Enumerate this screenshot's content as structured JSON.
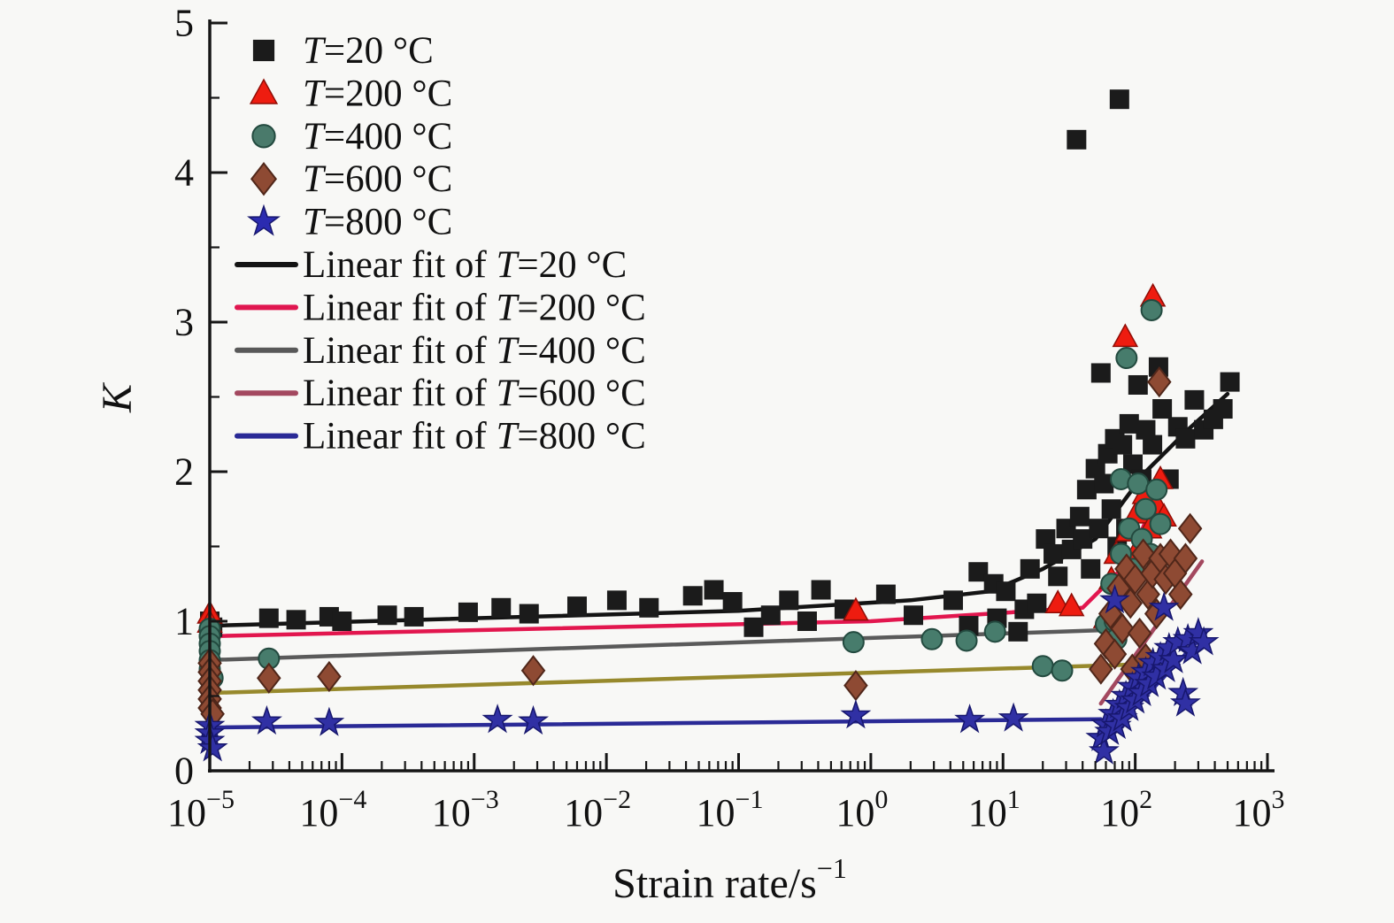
{
  "figure": {
    "background": "#f8f8f6",
    "axis_color": "#161616"
  },
  "chart_data": {
    "type": "scatter",
    "title": "",
    "xlabel": {
      "main": "Strain rate/s",
      "sup": "−1"
    },
    "ylabel": "K",
    "x_scale": "log",
    "x_tick_exponents": [
      -5,
      -4,
      -3,
      -2,
      -1,
      0,
      1,
      2,
      3
    ],
    "xlim_exponents": [
      -5,
      3
    ],
    "ylim": [
      0,
      5
    ],
    "y_ticks": [
      "0",
      "1",
      "2",
      "3",
      "4",
      "5"
    ],
    "y_minor_step": 0.5,
    "grid": false,
    "legend_position": "upper-left",
    "series": [
      {
        "name": "T=20 °C",
        "marker": "square",
        "color": "#1b1b1b",
        "edge": "#000000",
        "points": [
          [
            1e-05,
            1.0
          ],
          [
            1.05e-05,
            0.96
          ],
          [
            2.8e-05,
            1.02
          ],
          [
            4.5e-05,
            1.01
          ],
          [
            8e-05,
            1.03
          ],
          [
            0.0001,
            1.0
          ],
          [
            0.00022,
            1.04
          ],
          [
            0.00035,
            1.03
          ],
          [
            0.0009,
            1.06
          ],
          [
            0.0016,
            1.09
          ],
          [
            0.0026,
            1.05
          ],
          [
            0.006,
            1.1
          ],
          [
            0.012,
            1.14
          ],
          [
            0.021,
            1.09
          ],
          [
            0.045,
            1.17
          ],
          [
            0.065,
            1.21
          ],
          [
            0.09,
            1.13
          ],
          [
            0.13,
            0.96
          ],
          [
            0.175,
            1.04
          ],
          [
            0.24,
            1.14
          ],
          [
            0.33,
            1.0
          ],
          [
            0.42,
            1.21
          ],
          [
            0.63,
            1.08
          ],
          [
            1.3,
            1.18
          ],
          [
            2.1,
            1.04
          ],
          [
            4.2,
            1.14
          ],
          [
            5.5,
            0.97
          ],
          [
            6.5,
            1.33
          ],
          [
            8.5,
            1.25
          ],
          [
            9,
            1.02
          ],
          [
            10.5,
            1.2
          ],
          [
            13,
            0.93
          ],
          [
            14.5,
            1.08
          ],
          [
            16,
            1.35
          ],
          [
            18,
            1.12
          ],
          [
            21,
            1.55
          ],
          [
            24,
            1.45
          ],
          [
            26,
            1.3
          ],
          [
            30,
            1.62
          ],
          [
            33,
            1.48
          ],
          [
            36,
            4.22
          ],
          [
            38,
            1.7
          ],
          [
            40,
            1.55
          ],
          [
            43,
            1.88
          ],
          [
            46,
            1.35
          ],
          [
            50,
            2.02
          ],
          [
            53,
            1.62
          ],
          [
            55,
            2.66
          ],
          [
            58,
            1.92
          ],
          [
            62,
            2.12
          ],
          [
            66,
            1.75
          ],
          [
            70,
            2.22
          ],
          [
            73,
            1.5
          ],
          [
            76,
            4.49
          ],
          [
            80,
            2.18
          ],
          [
            85,
            1.62
          ],
          [
            90,
            2.32
          ],
          [
            96,
            2.05
          ],
          [
            105,
            2.58
          ],
          [
            112,
            1.95
          ],
          [
            120,
            2.28
          ],
          [
            135,
            2.18
          ],
          [
            150,
            2.7
          ],
          [
            160,
            2.42
          ],
          [
            180,
            1.95
          ],
          [
            210,
            2.3
          ],
          [
            240,
            2.22
          ],
          [
            280,
            2.48
          ],
          [
            330,
            2.28
          ],
          [
            390,
            2.35
          ],
          [
            460,
            2.42
          ],
          [
            520,
            2.6
          ]
        ]
      },
      {
        "name": "T=200 °C",
        "marker": "triangle",
        "color": "#ee1c10",
        "edge": "#8f0d06",
        "points": [
          [
            1e-05,
            1.05
          ],
          [
            1e-05,
            0.99
          ],
          [
            0.77,
            1.07
          ],
          [
            26,
            1.12
          ],
          [
            33,
            1.1
          ],
          [
            60,
            1.02
          ],
          [
            66,
            1.28
          ],
          [
            72,
            1.45
          ],
          [
            78,
            1.18
          ],
          [
            84,
            2.9
          ],
          [
            88,
            1.6
          ],
          [
            95,
            1.38
          ],
          [
            102,
            1.72
          ],
          [
            110,
            1.52
          ],
          [
            118,
            1.85
          ],
          [
            128,
            1.62
          ],
          [
            136,
            3.17
          ],
          [
            145,
            1.78
          ],
          [
            155,
            1.95
          ],
          [
            165,
            1.7
          ]
        ]
      },
      {
        "name": "T=400 °C",
        "marker": "circle",
        "color": "#477c6c",
        "edge": "#234a3f",
        "points": [
          [
            1e-05,
            0.95
          ],
          [
            1e-05,
            0.9
          ],
          [
            1e-05,
            0.85
          ],
          [
            1e-05,
            0.8
          ],
          [
            1e-05,
            0.74
          ],
          [
            1e-05,
            0.68
          ],
          [
            1.05e-05,
            0.62
          ],
          [
            2.8e-05,
            0.75
          ],
          [
            0.74,
            0.86
          ],
          [
            2.9,
            0.88
          ],
          [
            5.3,
            0.87
          ],
          [
            8.7,
            0.93
          ],
          [
            20,
            0.7
          ],
          [
            28,
            0.67
          ],
          [
            60,
            0.98
          ],
          [
            66,
            1.25
          ],
          [
            70,
            1.0
          ],
          [
            72,
            0.88
          ],
          [
            78,
            1.95
          ],
          [
            78,
            1.45
          ],
          [
            86,
            2.76
          ],
          [
            90,
            1.62
          ],
          [
            97,
            1.35
          ],
          [
            105,
            1.92
          ],
          [
            112,
            1.55
          ],
          [
            120,
            1.75
          ],
          [
            133,
            3.08
          ],
          [
            130,
            1.45
          ],
          [
            145,
            1.88
          ],
          [
            155,
            1.65
          ]
        ]
      },
      {
        "name": "T=600 °C",
        "marker": "diamond",
        "color": "#8e4a33",
        "edge": "#50271a",
        "points": [
          [
            1e-05,
            0.72
          ],
          [
            1e-05,
            0.66
          ],
          [
            1e-05,
            0.6
          ],
          [
            1e-05,
            0.54
          ],
          [
            1e-05,
            0.48
          ],
          [
            1e-05,
            0.42
          ],
          [
            1.05e-05,
            0.38
          ],
          [
            2.8e-05,
            0.62
          ],
          [
            8e-05,
            0.63
          ],
          [
            0.0028,
            0.67
          ],
          [
            0.77,
            0.57
          ],
          [
            55,
            0.68
          ],
          [
            60,
            0.85
          ],
          [
            65,
            1.05
          ],
          [
            70,
            0.78
          ],
          [
            75,
            1.22
          ],
          [
            80,
            0.95
          ],
          [
            86,
            1.35
          ],
          [
            92,
            1.12
          ],
          [
            95,
            0.68
          ],
          [
            100,
            1.28
          ],
          [
            108,
            0.92
          ],
          [
            115,
            1.45
          ],
          [
            120,
            0.75
          ],
          [
            125,
            1.18
          ],
          [
            135,
            1.32
          ],
          [
            145,
            1.05
          ],
          [
            152,
            2.6
          ],
          [
            155,
            1.42
          ],
          [
            170,
            1.28
          ],
          [
            185,
            1.45
          ],
          [
            200,
            1.32
          ],
          [
            220,
            1.18
          ],
          [
            240,
            1.42
          ],
          [
            260,
            1.62
          ]
        ]
      },
      {
        "name": "T=800 °C",
        "marker": "star",
        "color": "#3030a4",
        "edge": "#17176e",
        "points": [
          [
            1e-05,
            0.3
          ],
          [
            1e-05,
            0.25
          ],
          [
            1e-05,
            0.2
          ],
          [
            1.05e-05,
            0.15
          ],
          [
            2.7e-05,
            0.33
          ],
          [
            8e-05,
            0.32
          ],
          [
            0.0015,
            0.34
          ],
          [
            0.0028,
            0.33
          ],
          [
            0.77,
            0.37
          ],
          [
            5.6,
            0.34
          ],
          [
            12,
            0.35
          ],
          [
            55,
            0.22
          ],
          [
            58,
            0.13
          ],
          [
            60,
            0.31
          ],
          [
            64,
            0.26
          ],
          [
            68,
            0.38
          ],
          [
            70,
            1.14
          ],
          [
            72,
            0.3
          ],
          [
            76,
            0.44
          ],
          [
            80,
            0.35
          ],
          [
            85,
            0.5
          ],
          [
            90,
            0.42
          ],
          [
            95,
            0.56
          ],
          [
            100,
            0.47
          ],
          [
            106,
            0.62
          ],
          [
            112,
            0.52
          ],
          [
            120,
            0.66
          ],
          [
            128,
            0.58
          ],
          [
            136,
            0.72
          ],
          [
            145,
            0.63
          ],
          [
            155,
            0.76
          ],
          [
            165,
            1.09
          ],
          [
            170,
            0.68
          ],
          [
            180,
            0.82
          ],
          [
            195,
            0.74
          ],
          [
            210,
            0.86
          ],
          [
            230,
            0.52
          ],
          [
            240,
            0.45
          ],
          [
            250,
            0.88
          ],
          [
            270,
            0.8
          ],
          [
            300,
            0.92
          ],
          [
            330,
            0.86
          ]
        ]
      }
    ],
    "fit_lines": [
      {
        "series": "T=20 °C",
        "color": "#131313",
        "points": [
          [
            1e-05,
            0.97
          ],
          [
            0.1,
            1.07
          ],
          [
            2,
            1.14
          ],
          [
            8,
            1.2
          ],
          [
            20,
            1.35
          ],
          [
            50,
            1.55
          ],
          [
            120,
            2.0
          ],
          [
            250,
            2.28
          ],
          [
            500,
            2.52
          ]
        ]
      },
      {
        "series": "T=200 °C",
        "color": "#e2164e",
        "points": [
          [
            1e-05,
            0.9
          ],
          [
            1,
            1.0
          ],
          [
            40,
            1.09
          ],
          [
            90,
            1.4
          ],
          [
            165,
            1.97
          ]
        ]
      },
      {
        "series": "T=400 °C",
        "color": "#5a5a5a",
        "points": [
          [
            1e-05,
            0.74
          ],
          [
            120,
            0.95
          ]
        ]
      },
      {
        "series": "T=600 °C",
        "color": "#97892c",
        "points": [
          [
            1e-05,
            0.52
          ],
          [
            95,
            0.71
          ]
        ]
      },
      {
        "series": "T=600 °C dynamic",
        "color": "#a3485f",
        "points": [
          [
            55,
            0.45
          ],
          [
            320,
            1.4
          ]
        ]
      },
      {
        "series": "T=800 °C",
        "color": "#2a2a96",
        "points": [
          [
            1e-05,
            0.29
          ],
          [
            55,
            0.345
          ]
        ]
      },
      {
        "series": "T=800 °C dynamic",
        "color": "#2a2a96",
        "points": [
          [
            60,
            0.22
          ],
          [
            340,
            0.92
          ]
        ]
      }
    ],
    "legend": {
      "marker_items": [
        {
          "label": "T=20 °C",
          "marker": "square",
          "color": "#1b1b1b",
          "edge": "#000000"
        },
        {
          "label": "T=200 °C",
          "marker": "triangle",
          "color": "#ee1c10",
          "edge": "#8f0d06"
        },
        {
          "label": "T=400 °C",
          "marker": "circle",
          "color": "#4a7a6b",
          "edge": "#234a3f"
        },
        {
          "label": "T=600 °C",
          "marker": "diamond",
          "color": "#8e4a33",
          "edge": "#50271a"
        },
        {
          "label": "T=800 °C",
          "marker": "star",
          "color": "#2b2bb0",
          "edge": "#17176e"
        }
      ],
      "line_items": [
        {
          "label": "Linear fit of T=20 °C",
          "color": "#141414"
        },
        {
          "label": "Linear fit of T=200 °C",
          "color": "#e0164f"
        },
        {
          "label": "Linear fit of T=400 °C",
          "color": "#595959"
        },
        {
          "label": "Linear fit of T=600 °C",
          "color": "#a3485f"
        },
        {
          "label": "Linear fit of T=800 °C",
          "color": "#2a2a96"
        }
      ]
    }
  }
}
